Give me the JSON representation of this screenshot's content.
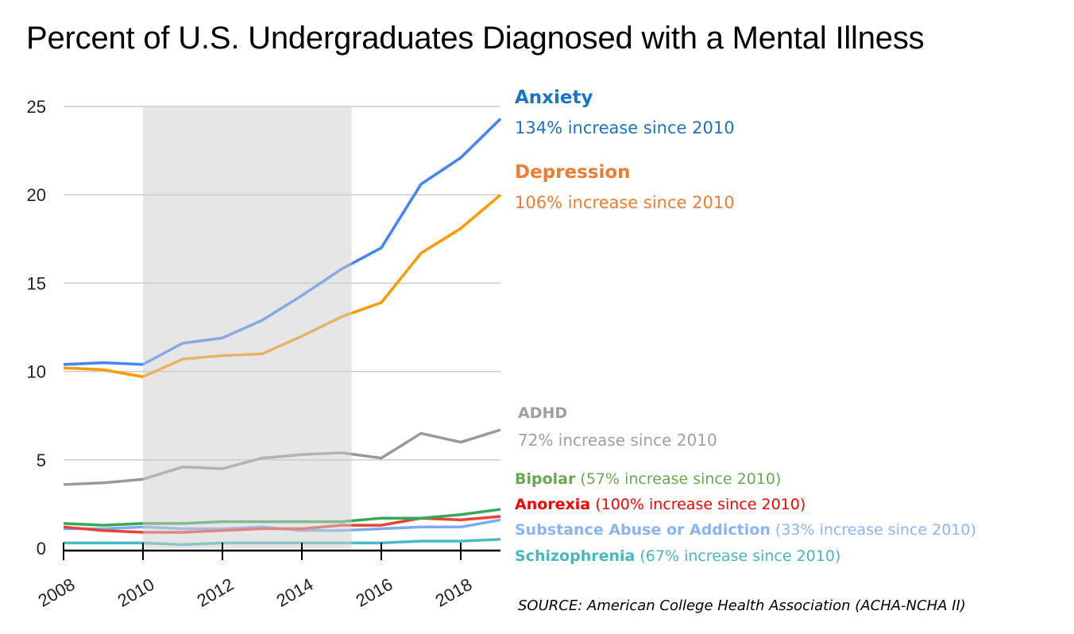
{
  "chart_data": {
    "type": "line",
    "title": "Percent of U.S. Undergraduates Diagnosed with a Mental Illness",
    "xlabel": "",
    "ylabel": "",
    "x": [
      2008,
      2009,
      2010,
      2011,
      2012,
      2013,
      2014,
      2015,
      2016,
      2017,
      2018,
      2019
    ],
    "xlim": [
      2008,
      2019
    ],
    "ylim": [
      0,
      25
    ],
    "yticks": [
      "0",
      "5",
      "10",
      "15",
      "20",
      "25"
    ],
    "xticks": [
      "2008",
      "2010",
      "2012",
      "2014",
      "2016",
      "2018"
    ],
    "grid": true,
    "shaded_range": [
      2010,
      2015.25
    ],
    "series": [
      {
        "name": "Anxiety",
        "note": "134% increase since 2010",
        "color": "#4285f4",
        "labelColor": "#1a73c8",
        "values": [
          10.4,
          10.5,
          10.4,
          11.6,
          11.9,
          12.9,
          14.3,
          15.8,
          17.0,
          20.6,
          22.1,
          24.3
        ]
      },
      {
        "name": "Depression",
        "note": "106% increase since 2010",
        "color": "#ff9900",
        "labelColor": "#ed7d31",
        "values": [
          10.2,
          10.1,
          9.7,
          10.7,
          10.9,
          11.0,
          12.0,
          13.1,
          13.9,
          16.7,
          18.1,
          20.0
        ]
      },
      {
        "name": "ADHD",
        "note": "72% increase since 2010",
        "color": "#999999",
        "labelColor": "#a0a0a0",
        "values": [
          3.6,
          3.7,
          3.9,
          4.6,
          4.5,
          5.1,
          5.3,
          5.4,
          5.1,
          6.5,
          6.0,
          6.7
        ]
      },
      {
        "name": "Bipolar",
        "note": "(57% increase since 2010)",
        "color": "#34a853",
        "labelColor": "#6aa84f",
        "values": [
          1.4,
          1.3,
          1.4,
          1.4,
          1.5,
          1.5,
          1.5,
          1.5,
          1.7,
          1.7,
          1.9,
          2.2
        ]
      },
      {
        "name": "Anorexia",
        "note": "(100% increase since 2010)",
        "color": "#ea4335",
        "labelColor": "#ff0000",
        "values": [
          1.2,
          1.0,
          0.9,
          0.9,
          1.0,
          1.1,
          1.1,
          1.3,
          1.3,
          1.7,
          1.6,
          1.8
        ]
      },
      {
        "name": "Substance Abuse or Addiction",
        "note": "(33% increase since 2010)",
        "color": "#7baaf7",
        "labelColor": "#8ab4f8",
        "values": [
          1.1,
          1.1,
          1.2,
          1.1,
          1.1,
          1.2,
          1.0,
          1.0,
          1.1,
          1.2,
          1.2,
          1.6
        ]
      },
      {
        "name": "Schizophrenia",
        "note": "(67% increase since 2010)",
        "color": "#46bdc6",
        "labelColor": "#45b8c0",
        "values": [
          0.3,
          0.3,
          0.3,
          0.2,
          0.3,
          0.3,
          0.3,
          0.3,
          0.3,
          0.4,
          0.4,
          0.5
        ]
      }
    ],
    "source": "SOURCE: American College Health Association (ACHA-NCHA II)"
  }
}
